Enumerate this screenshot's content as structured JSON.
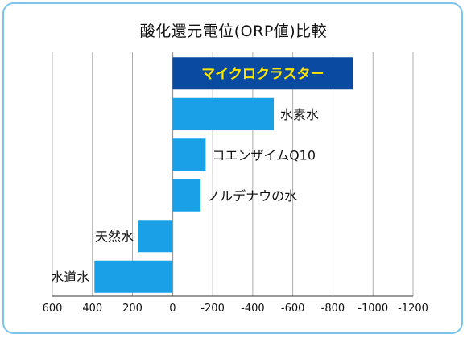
{
  "chart_data": {
    "type": "bar",
    "orientation": "horizontal",
    "title": "酸化還元電位(ORP値)比較",
    "categories": [
      "マイクロクラスター",
      "水素水",
      "コエンザイムQ10",
      "ノルデナウの水",
      "天然水",
      "水道水"
    ],
    "values": [
      -900,
      -505,
      -165,
      -140,
      170,
      390
    ],
    "xlim": [
      600,
      -1200
    ],
    "xticks": [
      600,
      400,
      200,
      0,
      -200,
      -400,
      -600,
      -800,
      -1000,
      -1200
    ],
    "xtick_labels": [
      "600",
      "400",
      "200",
      "0",
      "-200",
      "-400",
      "-600",
      "-800",
      "-1000",
      "-1200"
    ],
    "grid": true,
    "highlight": "マイクロクラスター",
    "colors": {
      "bar": "#1aa0e6",
      "highlight_bar": "#0a4aa0",
      "highlight_text": "#ffe600",
      "grid": "#999999",
      "frame": "#7cc3ea"
    }
  }
}
